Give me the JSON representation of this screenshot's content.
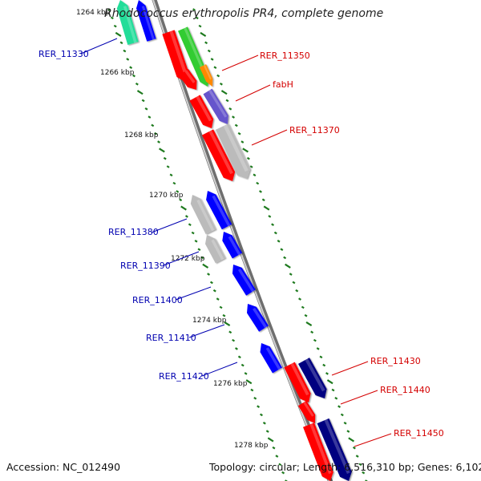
{
  "title": "Rhodococcus erythropolis PR4, complete genome",
  "footer": {
    "accession": "Accession: NC_012490",
    "stats": "Topology: circular; Length: 6,516,310 bp; Genes: 6,102"
  },
  "colors": {
    "backbone": "#8a8a8a",
    "tick": "#1e7a1e",
    "forward_label": "#d40000",
    "reverse_label": "#0000b0",
    "red": "#ff0000",
    "green": "#33cc33",
    "teal": "#22dd99",
    "orange": "#ff8800",
    "purple": "#6655cc",
    "gray": "#bbbbbb",
    "blue": "#0000ff",
    "navy": "#000080"
  },
  "ticks": [
    "1264 kbp",
    "1266 kbp",
    "1268 kbp",
    "1270 kbp",
    "1272 kbp",
    "1274 kbp",
    "1276 kbp",
    "1278 kbp"
  ],
  "gene_labels": [
    {
      "name": "RER_11330",
      "strand": "reverse"
    },
    {
      "name": "RER_11350",
      "strand": "forward"
    },
    {
      "name": "fabH",
      "strand": "forward"
    },
    {
      "name": "RER_11370",
      "strand": "forward"
    },
    {
      "name": "RER_11380",
      "strand": "reverse"
    },
    {
      "name": "RER_11390",
      "strand": "reverse"
    },
    {
      "name": "RER_11400",
      "strand": "reverse"
    },
    {
      "name": "RER_11410",
      "strand": "reverse"
    },
    {
      "name": "RER_11420",
      "strand": "reverse"
    },
    {
      "name": "RER_11430",
      "strand": "forward"
    },
    {
      "name": "RER_11440",
      "strand": "forward"
    },
    {
      "name": "RER_11450",
      "strand": "forward"
    }
  ],
  "features": [
    {
      "track": "outer",
      "color": "teal"
    },
    {
      "track": "outer",
      "color": "blue"
    },
    {
      "track": "inner",
      "color": "red"
    },
    {
      "track": "inner",
      "color": "red"
    },
    {
      "track": "inner",
      "color": "green"
    },
    {
      "track": "inner",
      "color": "orange"
    },
    {
      "track": "inner",
      "color": "red"
    },
    {
      "track": "inner",
      "color": "purple"
    },
    {
      "track": "inner",
      "color": "red"
    },
    {
      "track": "inner",
      "color": "gray"
    },
    {
      "track": "outer",
      "color": "gray"
    },
    {
      "track": "outer",
      "color": "blue"
    },
    {
      "track": "outer",
      "color": "gray"
    },
    {
      "track": "outer",
      "color": "blue"
    },
    {
      "track": "outer",
      "color": "blue"
    },
    {
      "track": "outer",
      "color": "blue"
    },
    {
      "track": "outer",
      "color": "blue"
    },
    {
      "track": "inner",
      "color": "red"
    },
    {
      "track": "inner",
      "color": "navy"
    },
    {
      "track": "inner",
      "color": "red"
    },
    {
      "track": "inner",
      "color": "red"
    },
    {
      "track": "inner",
      "color": "navy"
    }
  ]
}
